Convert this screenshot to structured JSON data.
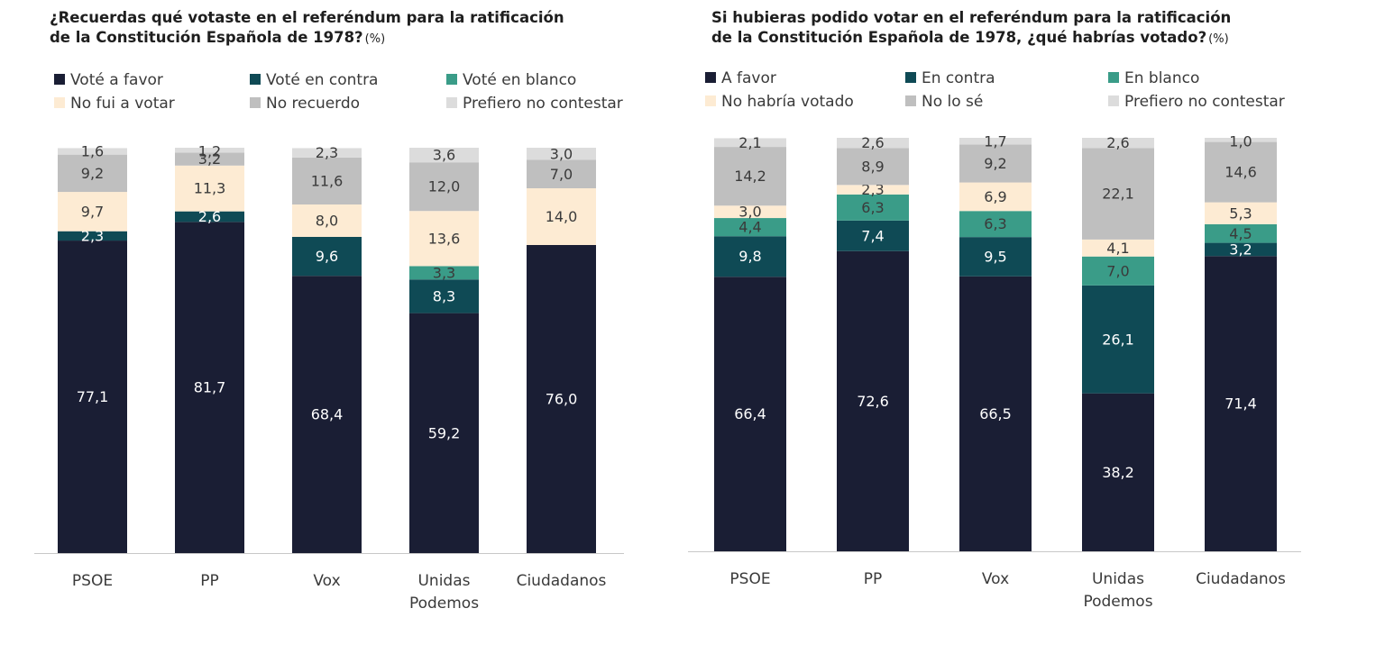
{
  "colors": {
    "a_favor": "#1a1e34",
    "en_contra": "#0f4a55",
    "en_blanco": "#3a9c88",
    "no_voto": "#fdebd3",
    "no_recuerdo": "#bfbfbf",
    "prefiero": "#dcdcdc",
    "axis": "#c8c8c8",
    "category_text": "#3a3a3a"
  },
  "left": {
    "title_line1": "¿Recuerdas qué votaste en el referéndum para la ratificación",
    "title_line2": "de la Constitución Española de 1978?",
    "title_unit": "(%)",
    "legend": [
      "Voté a favor",
      "Voté en contra",
      "Voté en blanco",
      "No fui a votar",
      "No recuerdo",
      "Prefiero no contestar"
    ]
  },
  "right": {
    "title_line1": "Si hubieras podido votar en el referéndum para la ratificación",
    "title_line2": "de la Constitución Española de 1978, ¿qué habrías votado?",
    "title_unit": "(%)",
    "legend": [
      "A favor",
      "En contra",
      "En blanco",
      "No habría votado",
      "No lo sé",
      "Prefiero no contestar"
    ]
  },
  "chart_data": [
    {
      "type": "bar",
      "stacked": true,
      "title": "¿Recuerdas qué votaste en el referéndum para la ratificación de la Constitución Española de 1978? (%)",
      "categories": [
        [
          "PSOE"
        ],
        [
          "PP"
        ],
        [
          "Vox"
        ],
        [
          "Unidas",
          "Podemos"
        ],
        [
          "Ciudadanos"
        ]
      ],
      "ylim": [
        0,
        100
      ],
      "grid": false,
      "legend_position": "top",
      "series": [
        {
          "name": "Voté a favor",
          "color_key": "a_favor",
          "values": [
            77.1,
            81.7,
            68.4,
            59.2,
            76.0
          ],
          "labels": [
            "77,1",
            "81,7",
            "68,4",
            "59,2",
            "76,0"
          ]
        },
        {
          "name": "Voté en contra",
          "color_key": "en_contra",
          "values": [
            2.3,
            2.6,
            9.6,
            8.3,
            null
          ],
          "labels": [
            "2,3",
            "2,6",
            "9,6",
            "8,3",
            null
          ]
        },
        {
          "name": "Voté en blanco",
          "color_key": "en_blanco",
          "values": [
            null,
            null,
            null,
            3.3,
            null
          ],
          "labels": [
            null,
            null,
            null,
            "3,3",
            null
          ]
        },
        {
          "name": "No fui a votar",
          "color_key": "no_voto",
          "values": [
            9.7,
            11.3,
            8.0,
            13.6,
            14.0
          ],
          "labels": [
            "9,7",
            "11,3",
            "8,0",
            "13,6",
            "14,0"
          ]
        },
        {
          "name": "No recuerdo",
          "color_key": "no_recuerdo",
          "values": [
            9.2,
            3.2,
            11.6,
            12.0,
            7.0
          ],
          "labels": [
            "9,2",
            "3,2",
            "11,6",
            "12,0",
            "7,0"
          ]
        },
        {
          "name": "Prefiero no contestar",
          "color_key": "prefiero",
          "values": [
            1.6,
            1.2,
            2.3,
            3.6,
            3.0
          ],
          "labels": [
            "1,6",
            "1,2",
            "2,3",
            "3,6",
            "3,0"
          ]
        }
      ]
    },
    {
      "type": "bar",
      "stacked": true,
      "title": "Si hubieras podido votar en el referéndum para la ratificación de la Constitución Española de 1978, ¿qué habrías votado? (%)",
      "categories": [
        [
          "PSOE"
        ],
        [
          "PP"
        ],
        [
          "Vox"
        ],
        [
          "Unidas",
          "Podemos"
        ],
        [
          "Ciudadanos"
        ]
      ],
      "ylim": [
        0,
        100
      ],
      "grid": false,
      "legend_position": "top",
      "series": [
        {
          "name": "A favor",
          "color_key": "a_favor",
          "values": [
            66.4,
            72.6,
            66.5,
            38.2,
            71.4
          ],
          "labels": [
            "66,4",
            "72,6",
            "66,5",
            "38,2",
            "71,4"
          ]
        },
        {
          "name": "En contra",
          "color_key": "en_contra",
          "values": [
            9.8,
            7.4,
            9.5,
            26.1,
            3.2
          ],
          "labels": [
            "9,8",
            "7,4",
            "9,5",
            "26,1",
            "3,2"
          ]
        },
        {
          "name": "En blanco",
          "color_key": "en_blanco",
          "values": [
            4.4,
            6.3,
            6.3,
            7.0,
            4.5
          ],
          "labels": [
            "4,4",
            "6,3",
            "6,3",
            "7,0",
            "4,5"
          ]
        },
        {
          "name": "No habría votado",
          "color_key": "no_voto",
          "values": [
            3.0,
            2.3,
            6.9,
            4.1,
            5.3
          ],
          "labels": [
            "3,0",
            "2,3",
            "6,9",
            "4,1",
            "5,3"
          ]
        },
        {
          "name": "No lo sé",
          "color_key": "no_recuerdo",
          "values": [
            14.2,
            8.9,
            9.2,
            22.1,
            14.6
          ],
          "labels": [
            "14,2",
            "8,9",
            "9,2",
            "22,1",
            "14,6"
          ]
        },
        {
          "name": "Prefiero no contestar",
          "color_key": "prefiero",
          "values": [
            2.1,
            2.6,
            1.7,
            2.6,
            1.0
          ],
          "labels": [
            "2,1",
            "2,6",
            "1,7",
            "2,6",
            "1,0"
          ]
        }
      ]
    }
  ]
}
